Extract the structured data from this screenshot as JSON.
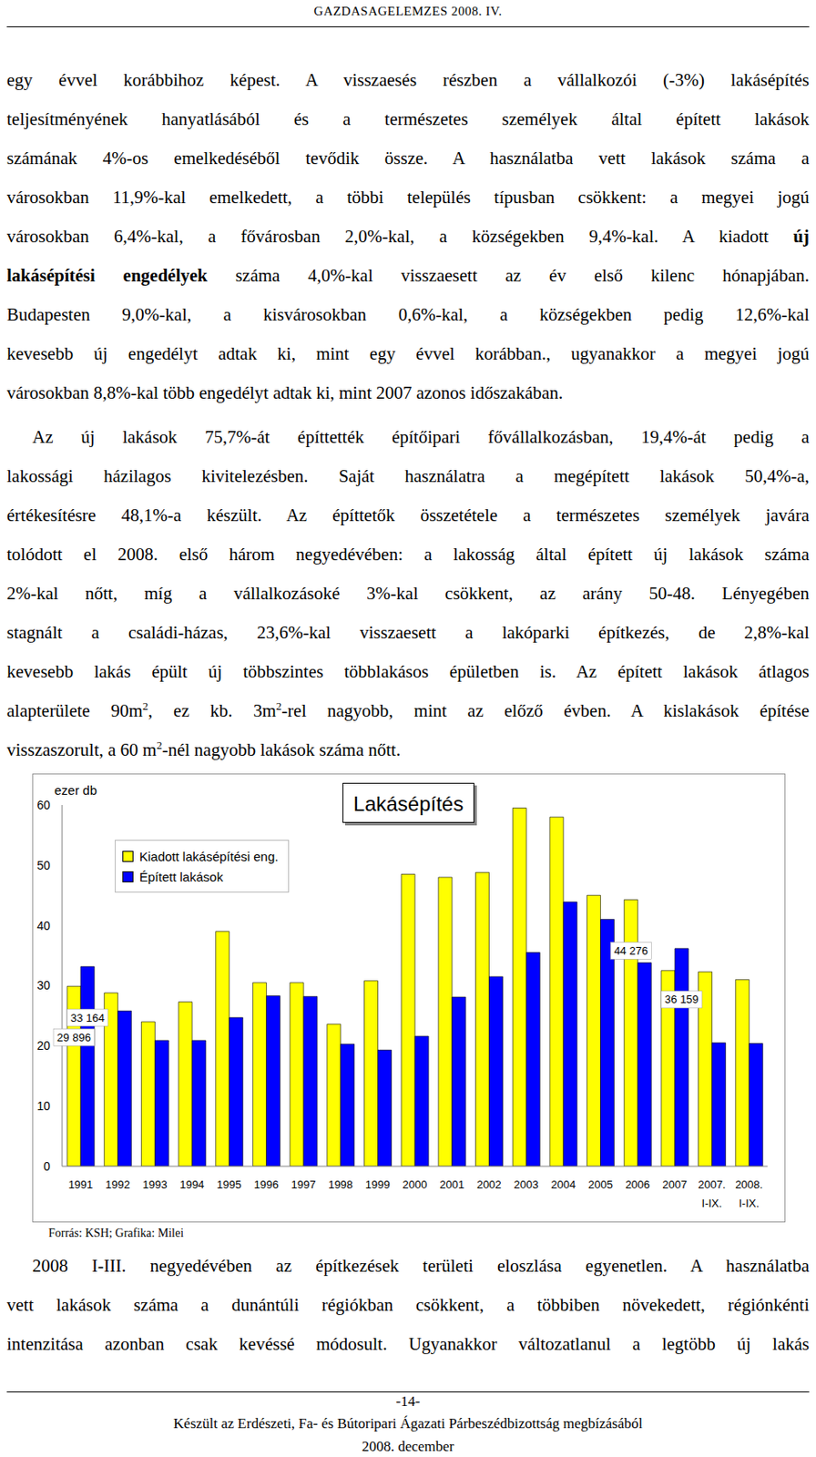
{
  "header": "GAZDASÁGELEMZÉS 2008. IV.",
  "paragraphs_before": [
    [
      [
        "egy évvel korábbihoz képest. A visszaesés részben a vállalkozói (-3%) lakásépítés"
      ],
      [
        "teljesítményének hanyatlásából és a természetes személyek által épített lakások"
      ],
      [
        "számának 4%-os emelkedéséből tevődik össze. A használatba vett lakások száma a"
      ],
      [
        "városokban 11,9%-kal emelkedett, a többi település típusban csökkent: a megyei jogú"
      ],
      [
        "városokban 6,4%-kal, a fővárosban 2,0%-kal, a községekben 9,4%-kal. A kiadott ",
        {
          "bold": "új"
        }
      ],
      [
        {
          "bold": "lakásépítési engedélyek"
        },
        " száma 4,0%-kal visszaesett az év első kilenc hónapjában."
      ],
      [
        "Budapesten 9,0%-kal, a kisvárosokban 0,6%-kal, a községekben pedig 12,6%-kal"
      ],
      [
        "kevesebb új engedélyt adtak ki, mint egy évvel korábban., ugyanakkor a megyei jogú"
      ],
      [
        "városokban 8,8%-kal több engedélyt adtak ki, mint 2007 azonos időszakában."
      ]
    ],
    [
      [
        "Az új lakások 75,7%-át építtették építőipari fővállalkozásban, 19,4%-át pedig a"
      ],
      [
        "lakossági házilagos kivitelezésben. Saját használatra a megépített lakások 50,4%-a,"
      ],
      [
        "értékesítésre 48,1%-a készült. Az építtetők összetétele a természetes személyek javára"
      ],
      [
        "tolódott el 2008. első három negyedévében: a lakosság által épített új lakások száma"
      ],
      [
        "2%-kal nőtt, míg a vállalkozásoké 3%-kal csökkent, az arány 50-48. Lényegében"
      ],
      [
        "stagnált a családi-házas, 23,6%-kal visszaesett a lakóparki építkezés, de 2,8%-kal"
      ],
      [
        "kevesebb lakás épült új többszintes többlakásos épületben is. Az épített lakások átlagos"
      ],
      [
        "alapterülete 90m",
        {
          "sup": "2"
        },
        ", ez kb. 3m",
        {
          "sup": "2"
        },
        "-rel nagyobb, mint az előző évben. A kislakások építése"
      ],
      [
        "visszaszorult, a 60 m",
        {
          "sup": "2"
        },
        "-nél nagyobb lakások száma nőtt."
      ]
    ]
  ],
  "chart_data": {
    "type": "bar",
    "title": "Lakásépítés",
    "y_label": "ezer db",
    "categories": [
      "1991",
      "1992",
      "1993",
      "1994",
      "1995",
      "1996",
      "1997",
      "1998",
      "1999",
      "2000",
      "2001",
      "2002",
      "2003",
      "2004",
      "2005",
      "2006",
      "2007",
      "2007. I-IX.",
      "2008. I-IX."
    ],
    "series": [
      {
        "name": "Kiadott lakásépítési eng.",
        "color": "#ffff00",
        "values": [
          29.896,
          28.8,
          24.0,
          27.3,
          39.0,
          30.5,
          30.5,
          23.6,
          30.8,
          48.5,
          48.0,
          48.8,
          59.5,
          58.0,
          45.0,
          44.276,
          32.5,
          32.3,
          31.0
        ],
        "value_labels": [
          "29 896",
          null,
          null,
          null,
          null,
          null,
          null,
          null,
          null,
          null,
          null,
          null,
          null,
          null,
          null,
          "44 276",
          null,
          null,
          null
        ]
      },
      {
        "name": "Épített lakások",
        "color": "#0000ff",
        "values": [
          33.164,
          25.8,
          20.9,
          20.9,
          24.7,
          28.3,
          28.2,
          20.3,
          19.3,
          21.6,
          28.1,
          31.5,
          35.5,
          43.9,
          41.0,
          33.8,
          36.159,
          20.5,
          20.4
        ],
        "value_labels": [
          "33 164",
          null,
          null,
          null,
          null,
          null,
          null,
          null,
          null,
          null,
          null,
          null,
          null,
          null,
          null,
          null,
          "36 159",
          null,
          null
        ]
      }
    ],
    "ylim": [
      0,
      60
    ],
    "yticks": [
      0,
      10,
      20,
      30,
      40,
      50,
      60
    ],
    "grid": false,
    "legend": "upper left"
  },
  "source": "Forrás: KSH; Grafika: Milei",
  "paragraphs_after": [
    [
      [
        "2008 I-III. negyedévében az építkezések területi eloszlása egyenetlen. A használatba"
      ],
      [
        "vett lakások száma a dunántúli régiókban csökkent, a többiben növekedett, régiónkénti"
      ],
      [
        "intenzitása azonban csak kevéssé módosult. Ugyanakkor változatlanul a legtöbb új lakás"
      ]
    ]
  ],
  "footer": {
    "page": "-14-",
    "lines": [
      "Készült az Erdészeti, Fa- és Bútoripari Ágazati Párbeszédbizottság megbízásából",
      "2008. december"
    ]
  }
}
